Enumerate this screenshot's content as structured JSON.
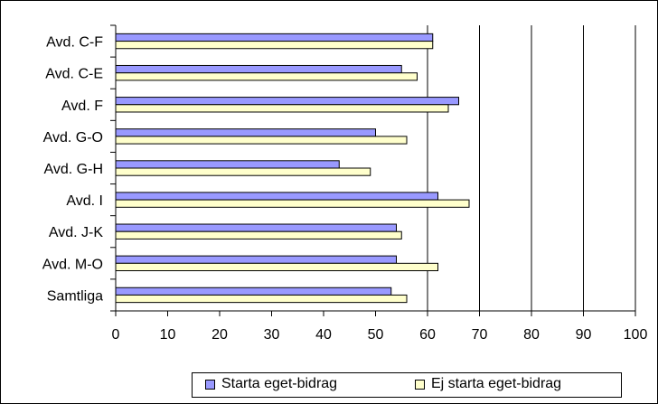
{
  "chart_data": {
    "type": "bar",
    "orientation": "horizontal",
    "categories": [
      "Avd. C-F",
      "Avd. C-E",
      "Avd. F",
      "Avd. G-O",
      "Avd. G-H",
      "Avd. I",
      "Avd. J-K",
      "Avd. M-O",
      "Samtliga"
    ],
    "series": [
      {
        "name": "Starta eget-bidrag",
        "color": "#9999ff",
        "values": [
          61,
          55,
          66,
          50,
          43,
          62,
          54,
          54,
          53
        ]
      },
      {
        "name": "Ej starta eget-bidrag",
        "color": "#ffffcc",
        "values": [
          61,
          58,
          64,
          56,
          49,
          68,
          55,
          62,
          56
        ]
      }
    ],
    "xlim": [
      0,
      100
    ],
    "xticks": [
      0,
      10,
      20,
      30,
      40,
      50,
      60,
      70,
      80,
      90,
      100
    ],
    "grid": "vertical",
    "grid_from": 60,
    "legend_position": "bottom"
  }
}
